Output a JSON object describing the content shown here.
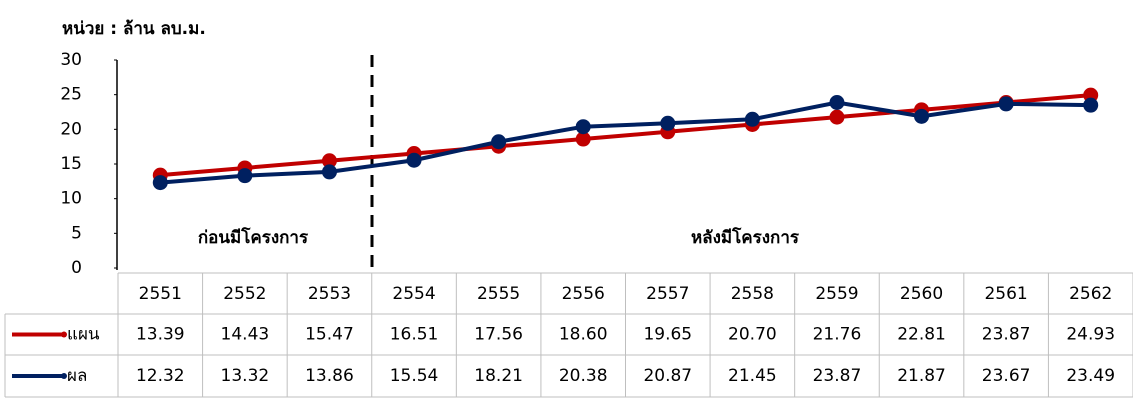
{
  "chart_data": {
    "type": "line",
    "subtitle": "หน่วย : ล้าน ลบ.ม.",
    "categories": [
      "2551",
      "2552",
      "2553",
      "2554",
      "2555",
      "2556",
      "2557",
      "2558",
      "2559",
      "2560",
      "2561",
      "2562"
    ],
    "series": [
      {
        "name": "แผน",
        "color": "#c00000",
        "values": [
          13.39,
          14.43,
          15.47,
          16.51,
          17.56,
          18.6,
          19.65,
          20.7,
          21.76,
          22.81,
          23.87,
          24.93
        ],
        "value_labels": [
          "13.39",
          "14.43",
          "15.47",
          "16.51",
          "17.56",
          "18.60",
          "19.65",
          "20.70",
          "21.76",
          "22.81",
          "23.87",
          "24.93"
        ]
      },
      {
        "name": "ผล",
        "color": "#002060",
        "values": [
          12.32,
          13.32,
          13.86,
          15.54,
          18.21,
          20.38,
          20.87,
          21.45,
          23.87,
          21.87,
          23.67,
          23.49
        ],
        "value_labels": [
          "12.32",
          "13.32",
          "13.86",
          "15.54",
          "18.21",
          "20.38",
          "20.87",
          "21.45",
          "23.87",
          "21.87",
          "23.67",
          "23.49"
        ]
      }
    ],
    "annotations": [
      "ก่อนมีโครงการ",
      "หลังมีโครงการ"
    ],
    "ylim": [
      0,
      30
    ],
    "yticks": [
      0,
      5,
      10,
      15,
      20,
      25,
      30
    ],
    "grid": false
  }
}
